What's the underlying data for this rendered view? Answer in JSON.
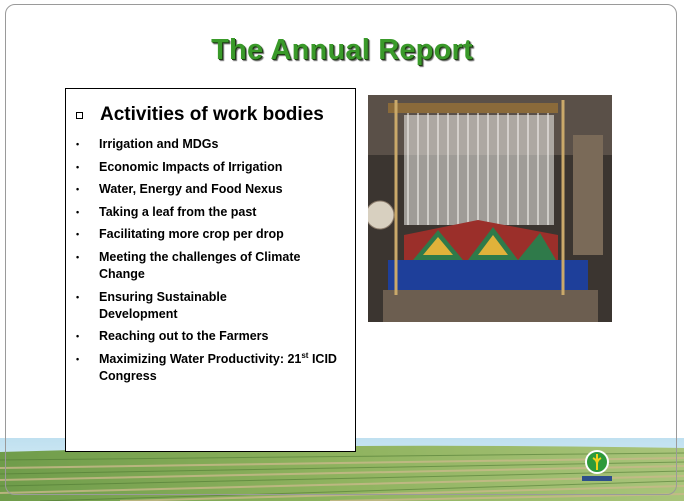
{
  "title": "The Annual Report",
  "box": {
    "heading": "Activities of work bodies",
    "items": [
      "Irrigation and MDGs",
      "Economic Impacts of Irrigation",
      "Water, Energy and Food Nexus",
      "Taking a leaf from the past",
      "Facilitating more crop per drop",
      "Meeting the challenges of Climate Change",
      "Ensuring Sustainable\nDevelopment",
      "Reaching out to the Farmers"
    ],
    "last_item": {
      "before": "Maximizing Water Productivity: 21",
      "sup": "st",
      "after": " ICID Congress"
    }
  }
}
